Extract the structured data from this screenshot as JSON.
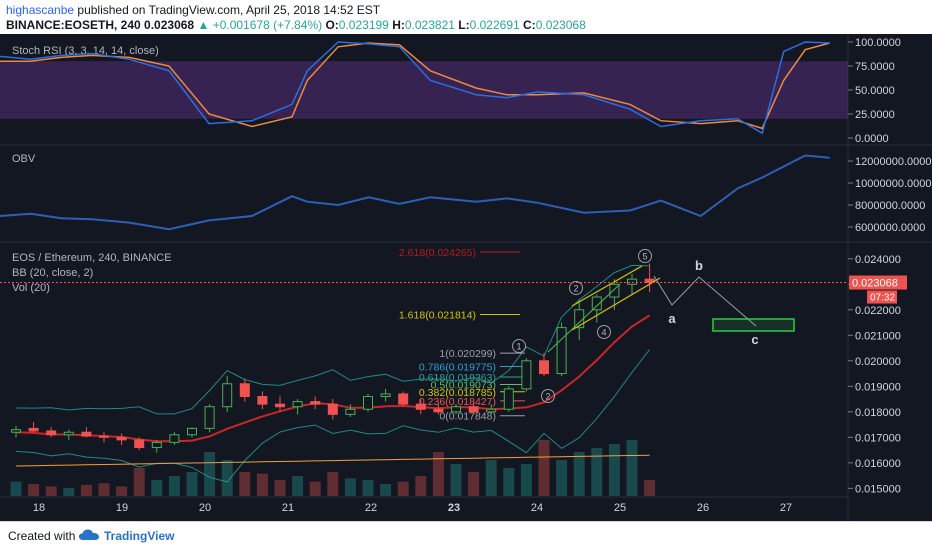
{
  "header": {
    "author": "highascanbe",
    "published": "published on TradingView.com, April 25, 2018 14:52 EST",
    "symbol": "BINANCE:EOSETH, 240",
    "last": "0.023068",
    "change_arrow": "▲",
    "change": "+0.001678 (+7.84%)",
    "o_label": "O:",
    "o": "0.023199",
    "h_label": "H:",
    "h": "0.023821",
    "l_label": "L:",
    "l": "0.022691",
    "c_label": "C:",
    "c": "0.023068"
  },
  "colors": {
    "up": "#26a69a",
    "down": "#ef5350",
    "rsi_k": "#2a6ee0",
    "rsi_d": "#f0883e",
    "rsi_band": "#7c3aa8",
    "obv": "#1e4fa0",
    "bb": "#26a69a",
    "ma": "#c62828",
    "wave": "#9aa0a6",
    "fib_yellow": "#d4c300",
    "target": "#2ecc40"
  },
  "chart_data": [
    {
      "type": "line",
      "title": "Stoch RSI (3, 3, 14, 14, close)",
      "ylim": [
        0,
        100
      ],
      "y_ticks": [
        "100.0000",
        "75.0000",
        "50.0000",
        "25.0000",
        "0.0000"
      ],
      "band": [
        20,
        80
      ],
      "series": [
        {
          "name": "K",
          "x": [
            0,
            10,
            20,
            30,
            42,
            55,
            68,
            82,
            95,
            100,
            110,
            120,
            130,
            140,
            155,
            165,
            175,
            190,
            205,
            215,
            228,
            240,
            248,
            255,
            262,
            270
          ],
          "values": [
            85,
            82,
            86,
            88,
            82,
            70,
            15,
            18,
            35,
            70,
            100,
            98,
            95,
            60,
            45,
            42,
            48,
            45,
            30,
            12,
            18,
            20,
            5,
            90,
            100,
            99
          ]
        },
        {
          "name": "D",
          "x": [
            0,
            10,
            20,
            30,
            42,
            55,
            68,
            82,
            95,
            100,
            110,
            120,
            130,
            140,
            155,
            165,
            175,
            190,
            205,
            215,
            228,
            240,
            248,
            255,
            262,
            270
          ],
          "values": [
            80,
            80,
            84,
            86,
            84,
            75,
            25,
            12,
            22,
            60,
            95,
            99,
            97,
            70,
            52,
            45,
            45,
            47,
            35,
            18,
            15,
            18,
            10,
            60,
            92,
            99
          ]
        }
      ]
    },
    {
      "type": "line",
      "title": "OBV",
      "ylim": [
        5000000,
        13000000
      ],
      "y_ticks": [
        "12000000.0000",
        "10000000.0000",
        "8000000.0000",
        "6000000.0000"
      ],
      "series": [
        {
          "name": "OBV",
          "x": [
            0,
            10,
            20,
            30,
            42,
            55,
            68,
            82,
            95,
            100,
            110,
            120,
            130,
            140,
            155,
            165,
            175,
            190,
            205,
            215,
            228,
            240,
            248,
            255,
            262,
            270
          ],
          "values": [
            7000000,
            7200000,
            6800000,
            6700000,
            6400000,
            5800000,
            6600000,
            7000000,
            8800000,
            8300000,
            8000000,
            8700000,
            8100000,
            8700000,
            8300000,
            8600000,
            8200000,
            7300000,
            7500000,
            8400000,
            7000000,
            9500000,
            10500000,
            11500000,
            12500000,
            12300000
          ]
        }
      ]
    },
    {
      "type": "candlestick",
      "title": "EOS / Ethereum, 240, BINANCE",
      "legend": [
        "BB (20, close, 2)",
        "Vol (20)"
      ],
      "ylim": [
        0.0147,
        0.0245
      ],
      "y_ticks": [
        "0.024000",
        "0.023000",
        "0.022000",
        "0.021000",
        "0.020000",
        "0.019000",
        "0.018000",
        "0.017000",
        "0.016000",
        "0.015000"
      ],
      "price_label": "0.023068",
      "countdown_label": "07:32",
      "x_ticks": [
        "18",
        "19",
        "20",
        "21",
        "22",
        "23",
        "24",
        "25",
        "26",
        "27"
      ],
      "candles": [
        [
          0.0172,
          0.01745,
          0.017,
          0.0173
        ],
        [
          0.01735,
          0.0176,
          0.0172,
          0.01725
        ],
        [
          0.01725,
          0.0174,
          0.017,
          0.0171
        ],
        [
          0.0171,
          0.0173,
          0.0169,
          0.0172
        ],
        [
          0.0172,
          0.0174,
          0.017,
          0.01705
        ],
        [
          0.01705,
          0.0172,
          0.0168,
          0.017
        ],
        [
          0.017,
          0.01715,
          0.0167,
          0.0169
        ],
        [
          0.0169,
          0.017,
          0.0165,
          0.0166
        ],
        [
          0.0166,
          0.0169,
          0.0164,
          0.0168
        ],
        [
          0.0168,
          0.0172,
          0.0167,
          0.0171
        ],
        [
          0.0171,
          0.0174,
          0.017,
          0.01735
        ],
        [
          0.01735,
          0.0183,
          0.0172,
          0.0182
        ],
        [
          0.0182,
          0.0194,
          0.018,
          0.0191
        ],
        [
          0.0191,
          0.0193,
          0.0184,
          0.0186
        ],
        [
          0.0186,
          0.0188,
          0.0181,
          0.0183
        ],
        [
          0.0183,
          0.0186,
          0.018,
          0.0182
        ],
        [
          0.0182,
          0.0185,
          0.0179,
          0.0184
        ],
        [
          0.0184,
          0.0186,
          0.0181,
          0.0183
        ],
        [
          0.0183,
          0.0185,
          0.0177,
          0.0179
        ],
        [
          0.0179,
          0.0183,
          0.0178,
          0.0181
        ],
        [
          0.0181,
          0.0187,
          0.018,
          0.0186
        ],
        [
          0.0186,
          0.0189,
          0.0184,
          0.0187
        ],
        [
          0.0187,
          0.0188,
          0.0182,
          0.0183
        ],
        [
          0.0183,
          0.0185,
          0.0179,
          0.0181
        ],
        [
          0.0181,
          0.0183,
          0.0179,
          0.018
        ],
        [
          0.018,
          0.0183,
          0.0179,
          0.0182
        ],
        [
          0.0182,
          0.0184,
          0.0179,
          0.018
        ],
        [
          0.018,
          0.0183,
          0.0179,
          0.0181
        ],
        [
          0.0181,
          0.019,
          0.018,
          0.0189
        ],
        [
          0.0189,
          0.0201,
          0.0188,
          0.02
        ],
        [
          0.02,
          0.0203,
          0.0194,
          0.0195
        ],
        [
          0.0195,
          0.0215,
          0.0194,
          0.0213
        ],
        [
          0.0213,
          0.0224,
          0.0208,
          0.022
        ],
        [
          0.022,
          0.0226,
          0.0215,
          0.0225
        ],
        [
          0.0225,
          0.0232,
          0.022,
          0.023
        ],
        [
          0.023,
          0.0234,
          0.0226,
          0.0232
        ],
        [
          0.0232,
          0.02382,
          0.02269,
          0.02307
        ]
      ],
      "volume_ylim": [
        0,
        1
      ],
      "volumes": [
        0.18,
        0.15,
        0.12,
        0.1,
        0.14,
        0.16,
        0.12,
        0.35,
        0.2,
        0.25,
        0.3,
        0.55,
        0.45,
        0.3,
        0.28,
        0.2,
        0.25,
        0.18,
        0.3,
        0.22,
        0.2,
        0.15,
        0.18,
        0.25,
        0.55,
        0.4,
        0.3,
        0.45,
        0.35,
        0.4,
        0.7,
        0.45,
        0.55,
        0.6,
        0.65,
        0.7,
        0.2
      ],
      "fib_levels": [
        {
          "label": "2.618(0.024265)",
          "value": 0.024265
        },
        {
          "label": "1.618(0.021814)",
          "value": 0.021814
        },
        {
          "label": "1(0.020299)",
          "value": 0.020299
        },
        {
          "label": "0.786(0.019775)",
          "value": 0.019775
        },
        {
          "label": "0.618(0.019363)",
          "value": 0.019363
        },
        {
          "label": "0.5(0.019073)",
          "value": 0.019073
        },
        {
          "label": "0.382(0.018785)",
          "value": 0.018785
        },
        {
          "label": "0.236(0.018427)",
          "value": 0.018427
        },
        {
          "label": "0(0.017848)",
          "value": 0.017848
        }
      ],
      "wave_labels": [
        "1",
        "2",
        "2",
        "4",
        "5",
        "a",
        "b",
        "c"
      ]
    }
  ],
  "footer": {
    "created_with": "Created with",
    "brand": "TradingView"
  }
}
